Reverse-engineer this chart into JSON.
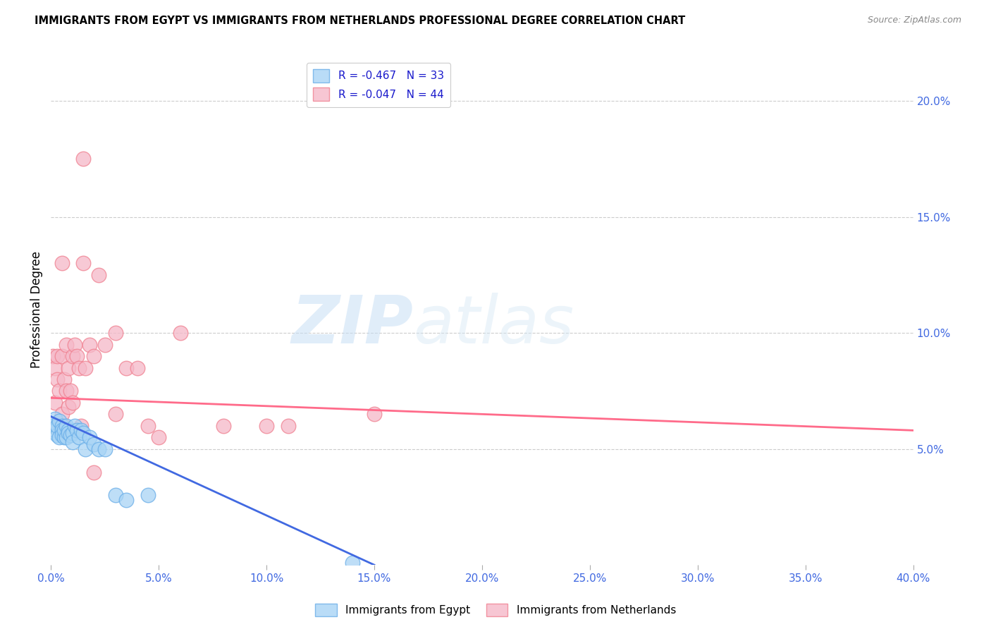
{
  "title": "IMMIGRANTS FROM EGYPT VS IMMIGRANTS FROM NETHERLANDS PROFESSIONAL DEGREE CORRELATION CHART",
  "source": "Source: ZipAtlas.com",
  "ylabel": "Professional Degree",
  "xlim": [
    0.0,
    0.4
  ],
  "ylim": [
    0.0,
    0.22
  ],
  "xticks": [
    0.0,
    0.05,
    0.1,
    0.15,
    0.2,
    0.25,
    0.3,
    0.35,
    0.4
  ],
  "yticks_right": [
    0.05,
    0.1,
    0.15,
    0.2
  ],
  "ytick_labels_right": [
    "5.0%",
    "10.0%",
    "15.0%",
    "20.0%"
  ],
  "xtick_labels": [
    "0.0%",
    "5.0%",
    "10.0%",
    "15.0%",
    "20.0%",
    "25.0%",
    "30.0%",
    "35.0%",
    "40.0%"
  ],
  "legend_egypt_r": "R = ",
  "legend_egypt_r_val": "-0.467",
  "legend_egypt_n": "   N = ",
  "legend_egypt_n_val": "33",
  "legend_neth_r": "R = ",
  "legend_neth_r_val": "-0.047",
  "legend_neth_n": "   N = ",
  "legend_neth_n_val": "44",
  "color_egypt_fill": "#a8d4f5",
  "color_egypt_edge": "#6aaee8",
  "color_netherlands_fill": "#f5b8c8",
  "color_netherlands_edge": "#f08090",
  "line_color_egypt": "#4169E1",
  "line_color_netherlands": "#FF6B8A",
  "watermark_zip": "ZIP",
  "watermark_atlas": "atlas",
  "egypt_scatter_x": [
    0.001,
    0.002,
    0.002,
    0.003,
    0.003,
    0.004,
    0.004,
    0.005,
    0.005,
    0.005,
    0.006,
    0.006,
    0.007,
    0.007,
    0.008,
    0.008,
    0.009,
    0.01,
    0.01,
    0.011,
    0.012,
    0.013,
    0.014,
    0.015,
    0.016,
    0.018,
    0.02,
    0.022,
    0.025,
    0.03,
    0.035,
    0.045,
    0.14
  ],
  "egypt_scatter_y": [
    0.06,
    0.063,
    0.058,
    0.056,
    0.06,
    0.055,
    0.062,
    0.06,
    0.058,
    0.056,
    0.055,
    0.058,
    0.06,
    0.055,
    0.058,
    0.057,
    0.056,
    0.057,
    0.053,
    0.06,
    0.058,
    0.055,
    0.058,
    0.057,
    0.05,
    0.055,
    0.052,
    0.05,
    0.05,
    0.03,
    0.028,
    0.03,
    0.001
  ],
  "netherlands_scatter_x": [
    0.001,
    0.001,
    0.002,
    0.002,
    0.003,
    0.003,
    0.003,
    0.004,
    0.004,
    0.005,
    0.005,
    0.005,
    0.006,
    0.006,
    0.007,
    0.007,
    0.008,
    0.008,
    0.009,
    0.01,
    0.01,
    0.011,
    0.012,
    0.013,
    0.014,
    0.015,
    0.016,
    0.018,
    0.02,
    0.022,
    0.025,
    0.03,
    0.035,
    0.04,
    0.045,
    0.06,
    0.08,
    0.1,
    0.11,
    0.15,
    0.03,
    0.05,
    0.015,
    0.02
  ],
  "netherlands_scatter_y": [
    0.09,
    0.06,
    0.085,
    0.07,
    0.06,
    0.08,
    0.09,
    0.058,
    0.075,
    0.09,
    0.13,
    0.065,
    0.06,
    0.08,
    0.095,
    0.075,
    0.068,
    0.085,
    0.075,
    0.09,
    0.07,
    0.095,
    0.09,
    0.085,
    0.06,
    0.13,
    0.085,
    0.095,
    0.09,
    0.125,
    0.095,
    0.1,
    0.085,
    0.085,
    0.06,
    0.1,
    0.06,
    0.06,
    0.06,
    0.065,
    0.065,
    0.055,
    0.175,
    0.04
  ],
  "egypt_line_x": [
    0.0,
    0.15
  ],
  "egypt_line_y": [
    0.064,
    0.0
  ],
  "neth_line_x": [
    0.0,
    0.4
  ],
  "neth_line_y": [
    0.072,
    0.058
  ]
}
